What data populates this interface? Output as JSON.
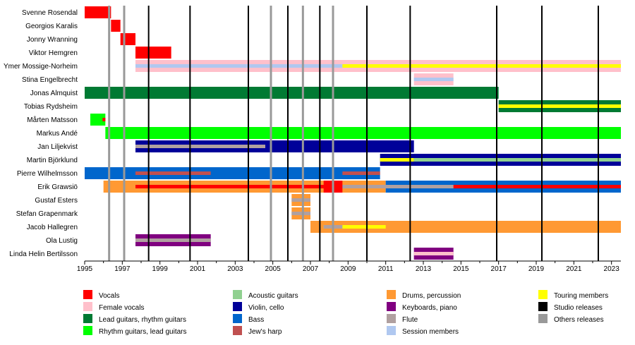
{
  "chart_data": {
    "type": "timeline",
    "title": "",
    "xlabel": "",
    "ylabel": "",
    "xlim": [
      1995,
      2023.5
    ],
    "x_ticks": [
      1995,
      1997,
      1999,
      2001,
      2003,
      2005,
      2007,
      2009,
      2011,
      2013,
      2015,
      2017,
      2019,
      2021,
      2023
    ],
    "legend_position": "bottom",
    "colors": {
      "vocals": "#ff0000",
      "female_vocals": "#ffc0cb",
      "lead_guitars": "#007a33",
      "rhythm_guitars": "#00ff00",
      "acoustic_guitars": "#90d090",
      "violin": "#000099",
      "bass": "#0066cc",
      "jews_harp": "#c05050",
      "drums": "#ff9933",
      "keyboards": "#800080",
      "flute": "#b0a0a0",
      "session": "#b0c8f0",
      "touring": "#ffff00",
      "studio": "#000000",
      "others": "#999999"
    },
    "legend": [
      {
        "key": "vocals",
        "label": "Vocals"
      },
      {
        "key": "female_vocals",
        "label": "Female vocals"
      },
      {
        "key": "lead_guitars",
        "label": "Lead guitars, rhythm guitars"
      },
      {
        "key": "rhythm_guitars",
        "label": "Rhythm guitars, lead guitars"
      },
      {
        "key": "acoustic_guitars",
        "label": "Acoustic guitars"
      },
      {
        "key": "violin",
        "label": "Violin, cello"
      },
      {
        "key": "bass",
        "label": "Bass"
      },
      {
        "key": "jews_harp",
        "label": "Jew's harp"
      },
      {
        "key": "drums",
        "label": "Drums, percussion"
      },
      {
        "key": "keyboards",
        "label": "Keyboards, piano"
      },
      {
        "key": "flute",
        "label": "Flute"
      },
      {
        "key": "session",
        "label": "Session members"
      },
      {
        "key": "touring",
        "label": "Touring members"
      },
      {
        "key": "studio",
        "label": "Studio releases"
      },
      {
        "key": "others",
        "label": "Others releases"
      }
    ],
    "studio_releases": [
      1998.4,
      2000.6,
      2003.7,
      2005.8,
      2007.5,
      2010.0,
      2012.3,
      2016.9,
      2019.3,
      2022.3
    ],
    "other_releases": [
      1996.3,
      1997.1,
      2004.9,
      2006.6,
      2008.2
    ],
    "members": [
      {
        "name": "Svenne Rosendal",
        "bars": [
          {
            "start": 1995,
            "end": 1996.4,
            "role": "vocals"
          }
        ]
      },
      {
        "name": "Georgios Karalis",
        "bars": [
          {
            "start": 1996.4,
            "end": 1996.9,
            "role": "vocals"
          }
        ]
      },
      {
        "name": "Jonny Wranning",
        "bars": [
          {
            "start": 1996.9,
            "end": 1997.7,
            "role": "vocals"
          }
        ]
      },
      {
        "name": "Viktor Hemgren",
        "bars": [
          {
            "start": 1997.7,
            "end": 1999.6,
            "role": "vocals"
          }
        ]
      },
      {
        "name": "Ymer Mossige-Norheim",
        "bars": [
          {
            "start": 1997.7,
            "end": 2023.5,
            "role": "female_vocals"
          },
          {
            "start": 1997.7,
            "end": 2008.7,
            "role": "session",
            "inner": true
          },
          {
            "start": 2008.7,
            "end": 2023.5,
            "role": "touring",
            "inner": true
          }
        ]
      },
      {
        "name": "Stina Engelbrecht",
        "bars": [
          {
            "start": 2012.5,
            "end": 2014.6,
            "role": "female_vocals"
          },
          {
            "start": 2012.5,
            "end": 2014.6,
            "role": "session",
            "inner": true
          }
        ]
      },
      {
        "name": "Jonas Almquist",
        "bars": [
          {
            "start": 1995,
            "end": 2017.0,
            "role": "lead_guitars"
          }
        ]
      },
      {
        "name": "Tobias Rydsheim",
        "bars": [
          {
            "start": 2017.0,
            "end": 2023.5,
            "role": "lead_guitars"
          },
          {
            "start": 2017.0,
            "end": 2023.5,
            "role": "touring",
            "inner": true
          }
        ]
      },
      {
        "name": "Mårten Matsson",
        "bars": [
          {
            "start": 1995.3,
            "end": 1996.1,
            "role": "rhythm_guitars"
          },
          {
            "start": 1995.95,
            "end": 1996.1,
            "role": "vocals",
            "inner": true
          }
        ]
      },
      {
        "name": "Markus Andé",
        "bars": [
          {
            "start": 1996.1,
            "end": 2023.5,
            "role": "rhythm_guitars"
          }
        ]
      },
      {
        "name": "Jan Liljekvist",
        "bars": [
          {
            "start": 1997.7,
            "end": 2012.5,
            "role": "violin"
          },
          {
            "start": 1997.7,
            "end": 2004.6,
            "role": "flute",
            "inner": true
          }
        ]
      },
      {
        "name": "Martin Björklund",
        "bars": [
          {
            "start": 2010.7,
            "end": 2023.5,
            "role": "violin"
          },
          {
            "start": 2010.7,
            "end": 2012.5,
            "role": "touring",
            "inner": true
          },
          {
            "start": 2012.5,
            "end": 2023.5,
            "role": "acoustic_guitars",
            "inner": true
          }
        ]
      },
      {
        "name": "Pierre Wilhelmsson",
        "bars": [
          {
            "start": 1995,
            "end": 2010.7,
            "role": "bass"
          },
          {
            "start": 1997.7,
            "end": 2001.7,
            "role": "jews_harp",
            "inner": true
          },
          {
            "start": 2008.7,
            "end": 2010.7,
            "role": "jews_harp",
            "inner": true
          }
        ]
      },
      {
        "name": "Erik Grawsiö",
        "bars": [
          {
            "start": 1996.0,
            "end": 2011.0,
            "role": "drums"
          },
          {
            "start": 2011.0,
            "end": 2023.5,
            "role": "bass"
          },
          {
            "start": 1997.7,
            "end": 2023.5,
            "role": "vocals",
            "inner": true
          },
          {
            "start": 2007.7,
            "end": 2008.7,
            "role": "vocals"
          },
          {
            "start": 2008.7,
            "end": 2014.6,
            "role": "flute",
            "inner": true
          }
        ]
      },
      {
        "name": "Gustaf Esters",
        "bars": [
          {
            "start": 2006.0,
            "end": 2007.0,
            "role": "drums"
          },
          {
            "start": 2006.0,
            "end": 2007.0,
            "role": "flute",
            "inner": true
          }
        ]
      },
      {
        "name": "Stefan Grapenmark",
        "bars": [
          {
            "start": 2006.0,
            "end": 2007.0,
            "role": "drums"
          },
          {
            "start": 2006.0,
            "end": 2007.0,
            "role": "flute",
            "inner": true
          }
        ]
      },
      {
        "name": "Jacob Hallegren",
        "bars": [
          {
            "start": 2007.0,
            "end": 2023.5,
            "role": "drums"
          },
          {
            "start": 2007.7,
            "end": 2011.0,
            "role": "touring",
            "inner": true
          },
          {
            "start": 2007.7,
            "end": 2008.7,
            "role": "flute",
            "inner": true
          }
        ]
      },
      {
        "name": "Ola Lustig",
        "bars": [
          {
            "start": 1997.7,
            "end": 2001.7,
            "role": "keyboards"
          },
          {
            "start": 1997.7,
            "end": 2001.7,
            "role": "flute",
            "inner": true
          }
        ]
      },
      {
        "name": "Linda Helin Bertilsson",
        "bars": [
          {
            "start": 2012.5,
            "end": 2014.6,
            "role": "keyboards"
          },
          {
            "start": 2012.5,
            "end": 2014.6,
            "role": "female_vocals",
            "inner": true
          }
        ]
      }
    ]
  }
}
